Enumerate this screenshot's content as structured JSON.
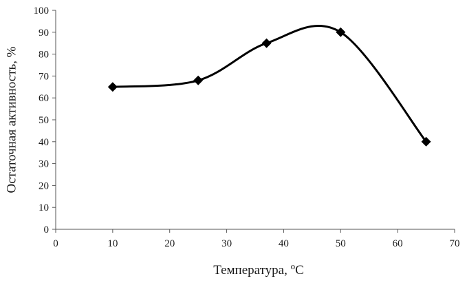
{
  "chart_data": {
    "type": "line",
    "title": "",
    "xlabel": "Температура, ",
    "xlabel_unit": "C",
    "xlabel_superscript": "o",
    "ylabel": "Остаточная активность, %",
    "xlim": [
      0,
      70
    ],
    "ylim": [
      0,
      100
    ],
    "xticks": [
      0,
      10,
      20,
      30,
      40,
      50,
      60,
      70
    ],
    "yticks": [
      0,
      10,
      20,
      30,
      40,
      50,
      60,
      70,
      80,
      90,
      100
    ],
    "grid": false,
    "legend": "none",
    "smooth": true,
    "marker": "diamond",
    "color": "#000000",
    "series": [
      {
        "x": [
          10,
          25,
          37,
          50,
          65
        ],
        "y": [
          65,
          68,
          85,
          90,
          40
        ]
      }
    ]
  }
}
